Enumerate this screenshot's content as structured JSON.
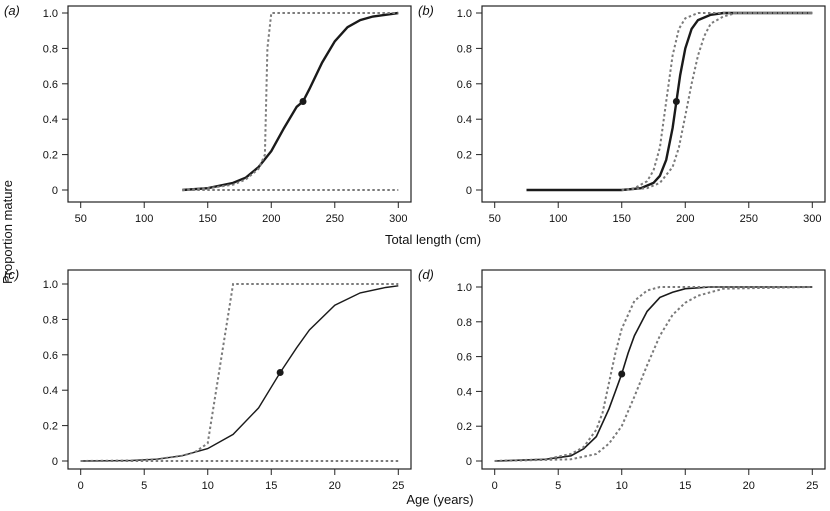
{
  "ylabel": "Proportion mature",
  "xlabel_top": "Total length (cm)",
  "xlabel_bottom": "Age (years)",
  "chart_data": [
    {
      "panel": "(a)",
      "type": "line",
      "xlim": [
        40,
        310
      ],
      "ylim": [
        0,
        1
      ],
      "xticks": [
        50,
        100,
        150,
        200,
        250,
        300
      ],
      "yticks": [
        0,
        0.2,
        0.4,
        0.6,
        0.8,
        1.0
      ],
      "ytick_labels": [
        "0",
        "0.2",
        "0.4",
        "0.6",
        "0.8",
        "1.0"
      ],
      "series": [
        {
          "role": "fit",
          "style": "solid",
          "x": [
            130,
            150,
            170,
            180,
            190,
            200,
            210,
            220,
            225,
            230,
            240,
            250,
            260,
            270,
            280,
            290,
            300
          ],
          "y": [
            0.0,
            0.01,
            0.04,
            0.07,
            0.13,
            0.22,
            0.35,
            0.47,
            0.5,
            0.57,
            0.72,
            0.84,
            0.92,
            0.96,
            0.98,
            0.99,
            1.0
          ]
        },
        {
          "role": "upper",
          "style": "dashed",
          "x": [
            130,
            150,
            170,
            180,
            190,
            195,
            197,
            200,
            250,
            300
          ],
          "y": [
            0.0,
            0.01,
            0.03,
            0.06,
            0.12,
            0.2,
            0.8,
            1.0,
            1.0,
            1.0
          ]
        },
        {
          "role": "lower",
          "style": "dashed",
          "x": [
            130,
            200,
            250,
            300
          ],
          "y": [
            0.0,
            0.0,
            0.0,
            0.0
          ]
        }
      ],
      "points": [
        {
          "x": 225,
          "y": 0.5
        }
      ]
    },
    {
      "panel": "(b)",
      "type": "line",
      "xlim": [
        40,
        310
      ],
      "ylim": [
        0,
        1
      ],
      "xticks": [
        50,
        100,
        150,
        200,
        250,
        300
      ],
      "yticks": [
        0,
        0.2,
        0.4,
        0.6,
        0.8,
        1.0
      ],
      "ytick_labels": [
        "0",
        "0.2",
        "0.4",
        "0.6",
        "0.8",
        "1.0"
      ],
      "series": [
        {
          "role": "fit",
          "style": "solid",
          "x": [
            75,
            150,
            165,
            175,
            180,
            185,
            190,
            193,
            196,
            200,
            205,
            210,
            220,
            230,
            240,
            300
          ],
          "y": [
            0.0,
            0.0,
            0.01,
            0.04,
            0.08,
            0.17,
            0.35,
            0.5,
            0.65,
            0.8,
            0.91,
            0.96,
            0.99,
            1.0,
            1.0,
            1.0
          ]
        },
        {
          "role": "upper",
          "style": "dashed",
          "x": [
            150,
            160,
            170,
            175,
            180,
            185,
            190,
            195,
            200,
            210,
            300
          ],
          "y": [
            0.0,
            0.01,
            0.05,
            0.11,
            0.24,
            0.5,
            0.76,
            0.91,
            0.97,
            1.0,
            1.0
          ]
        },
        {
          "role": "lower",
          "style": "dashed",
          "x": [
            150,
            170,
            180,
            190,
            195,
            200,
            205,
            210,
            215,
            220,
            230,
            240,
            300
          ],
          "y": [
            0.0,
            0.01,
            0.04,
            0.13,
            0.24,
            0.42,
            0.6,
            0.76,
            0.87,
            0.94,
            0.98,
            1.0,
            1.0
          ]
        }
      ],
      "points": [
        {
          "x": 193,
          "y": 0.5
        }
      ]
    },
    {
      "panel": "(c)",
      "type": "line",
      "xlim": [
        -1,
        26
      ],
      "ylim": [
        0,
        1
      ],
      "xticks": [
        0,
        5,
        10,
        15,
        20,
        25
      ],
      "yticks": [
        0,
        0.2,
        0.4,
        0.6,
        0.8,
        1.0
      ],
      "ytick_labels": [
        "0",
        "0.2",
        "0.4",
        "0.6",
        "0.8",
        "1.0"
      ],
      "series": [
        {
          "role": "fit",
          "style": "solid",
          "x": [
            0,
            4,
            6,
            8,
            10,
            12,
            14,
            15.7,
            17,
            18,
            20,
            22,
            24,
            25
          ],
          "y": [
            0.0,
            0.003,
            0.01,
            0.03,
            0.07,
            0.15,
            0.3,
            0.5,
            0.64,
            0.74,
            0.88,
            0.95,
            0.98,
            0.99
          ]
        },
        {
          "role": "upper",
          "style": "dashed",
          "x": [
            0,
            4,
            6,
            8,
            9,
            10,
            12,
            25
          ],
          "y": [
            0.0,
            0.003,
            0.01,
            0.03,
            0.05,
            0.1,
            1.0,
            1.0
          ]
        },
        {
          "role": "lower",
          "style": "dashed",
          "x": [
            0,
            10,
            20,
            25
          ],
          "y": [
            0.0,
            0.0,
            0.0,
            0.0
          ]
        }
      ],
      "points": [
        {
          "x": 15.7,
          "y": 0.5
        }
      ]
    },
    {
      "panel": "(d)",
      "type": "line",
      "xlim": [
        -1,
        26
      ],
      "ylim": [
        0,
        1
      ],
      "xticks": [
        0,
        5,
        10,
        15,
        20,
        25
      ],
      "yticks": [
        0,
        0.2,
        0.4,
        0.6,
        0.8,
        1.0
      ],
      "ytick_labels": [
        "0",
        "0.2",
        "0.4",
        "0.6",
        "0.8",
        "1.0"
      ],
      "series": [
        {
          "role": "fit",
          "style": "solid",
          "x": [
            0,
            4,
            6,
            7,
            8,
            9,
            9.5,
            10,
            10.5,
            11,
            12,
            13,
            14,
            15,
            17,
            25
          ],
          "y": [
            0.0,
            0.01,
            0.03,
            0.07,
            0.14,
            0.3,
            0.4,
            0.5,
            0.62,
            0.72,
            0.86,
            0.94,
            0.97,
            0.99,
            1.0,
            1.0
          ]
        },
        {
          "role": "upper",
          "style": "dashed",
          "x": [
            0,
            4,
            6,
            7,
            8,
            8.5,
            9,
            9.5,
            10,
            11,
            12,
            13,
            25
          ],
          "y": [
            0.0,
            0.01,
            0.04,
            0.08,
            0.18,
            0.28,
            0.45,
            0.62,
            0.76,
            0.92,
            0.98,
            1.0,
            1.0
          ]
        },
        {
          "role": "lower",
          "style": "dashed",
          "x": [
            0,
            6,
            8,
            9,
            10,
            11,
            12,
            13,
            14,
            15,
            16,
            18,
            25
          ],
          "y": [
            0.0,
            0.01,
            0.04,
            0.1,
            0.2,
            0.37,
            0.55,
            0.72,
            0.84,
            0.91,
            0.95,
            0.99,
            1.0
          ]
        }
      ],
      "points": [
        {
          "x": 10,
          "y": 0.5
        }
      ]
    }
  ]
}
